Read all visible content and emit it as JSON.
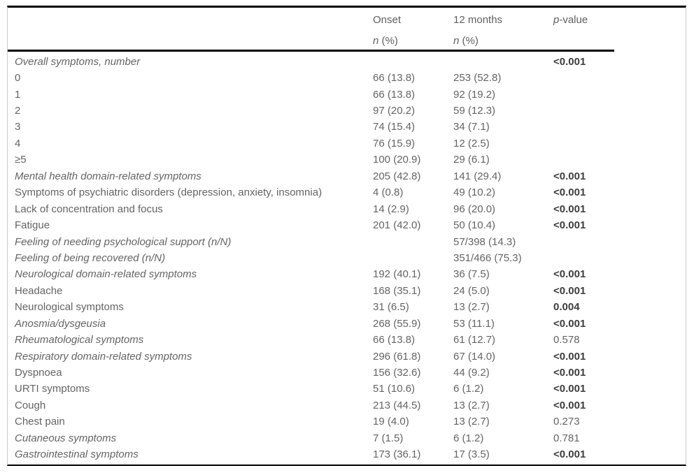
{
  "header": {
    "onset": {
      "title": "Onset",
      "sub_italic": "n",
      "sub_rest": " (%)"
    },
    "twelve_months": {
      "title": "12 months",
      "sub_italic": "n",
      "sub_rest": " (%)"
    },
    "p_column": {
      "italic": "p",
      "rest": "-value"
    }
  },
  "colors": {
    "text_regular": "#646464",
    "text_bold": "#3d3d3d",
    "rule_black": "#000000",
    "rule_light": "#cccccc",
    "background": "#ffffff"
  },
  "table": {
    "rows": [
      {
        "label": "Overall symptoms, number",
        "onset": "",
        "m12": "",
        "p": "<0.001",
        "italic": true,
        "p_bold": true
      },
      {
        "label": "0",
        "onset": "66 (13.8)",
        "m12": "253 (52.8)",
        "p": "",
        "italic": false,
        "p_bold": false
      },
      {
        "label": "1",
        "onset": "66 (13.8)",
        "m12": "92 (19.2)",
        "p": "",
        "italic": false,
        "p_bold": false
      },
      {
        "label": "2",
        "onset": "97 (20.2)",
        "m12": "59 (12.3)",
        "p": "",
        "italic": false,
        "p_bold": false
      },
      {
        "label": "3",
        "onset": "74 (15.4)",
        "m12": "34 (7.1)",
        "p": "",
        "italic": false,
        "p_bold": false
      },
      {
        "label": "4",
        "onset": "76 (15.9)",
        "m12": "12 (2.5)",
        "p": "",
        "italic": false,
        "p_bold": false
      },
      {
        "label": "≥5",
        "onset": "100 (20.9)",
        "m12": "29 (6.1)",
        "p": "",
        "italic": false,
        "p_bold": false
      },
      {
        "label": "Mental health domain-related symptoms",
        "onset": "205 (42.8)",
        "m12": "141 (29.4)",
        "p": "<0.001",
        "italic": true,
        "p_bold": true
      },
      {
        "label": "Symptoms of psychiatric disorders (depression, anxiety, insomnia)",
        "onset": "4 (0.8)",
        "m12": "49 (10.2)",
        "p": "<0.001",
        "italic": false,
        "p_bold": true
      },
      {
        "label": "Lack of concentration and focus",
        "onset": "14 (2.9)",
        "m12": "96 (20.0)",
        "p": "<0.001",
        "italic": false,
        "p_bold": true
      },
      {
        "label": "Fatigue",
        "onset": "201 (42.0)",
        "m12": "50 (10.4)",
        "p": "<0.001",
        "italic": false,
        "p_bold": true
      },
      {
        "label": "Feeling of needing psychological support (n/N)",
        "onset": "",
        "m12": "57/398 (14.3)",
        "p": "",
        "italic": true,
        "p_bold": false
      },
      {
        "label": "Feeling of being recovered (n/N)",
        "onset": "",
        "m12": "351/466 (75.3)",
        "p": "",
        "italic": true,
        "p_bold": false
      },
      {
        "label": "Neurological domain-related symptoms",
        "onset": "192 (40.1)",
        "m12": "36 (7.5)",
        "p": "<0.001",
        "italic": true,
        "p_bold": true
      },
      {
        "label": "Headache",
        "onset": "168 (35.1)",
        "m12": "24 (5.0)",
        "p": "<0.001",
        "italic": false,
        "p_bold": true
      },
      {
        "label": "Neurological symptoms",
        "onset": "31 (6.5)",
        "m12": "13 (2.7)",
        "p": "0.004",
        "italic": false,
        "p_bold": true
      },
      {
        "label": "Anosmia/dysgeusia",
        "onset": "268 (55.9)",
        "m12": "53 (11.1)",
        "p": "<0.001",
        "italic": true,
        "p_bold": true
      },
      {
        "label": "Rheumatological symptoms",
        "onset": "66 (13.8)",
        "m12": "61 (12.7)",
        "p": "0.578",
        "italic": true,
        "p_bold": false
      },
      {
        "label": "Respiratory domain-related symptoms",
        "onset": "296 (61.8)",
        "m12": "67 (14.0)",
        "p": "<0.001",
        "italic": true,
        "p_bold": true
      },
      {
        "label": "Dyspnoea",
        "onset": "156 (32.6)",
        "m12": "44 (9.2)",
        "p": "<0.001",
        "italic": false,
        "p_bold": true
      },
      {
        "label": "URTI symptoms",
        "onset": "51 (10.6)",
        "m12": "6 (1.2)",
        "p": "<0.001",
        "italic": false,
        "p_bold": true
      },
      {
        "label": "Cough",
        "onset": "213 (44.5)",
        "m12": "13 (2.7)",
        "p": "<0.001",
        "italic": false,
        "p_bold": true
      },
      {
        "label": "Chest pain",
        "onset": "19 (4.0)",
        "m12": "13 (2.7)",
        "p": "0.273",
        "italic": false,
        "p_bold": false
      },
      {
        "label": "Cutaneous symptoms",
        "onset": "7 (1.5)",
        "m12": "6 (1.2)",
        "p": "0.781",
        "italic": true,
        "p_bold": false
      },
      {
        "label": "Gastrointestinal symptoms",
        "onset": "173 (36.1)",
        "m12": "17 (3.5)",
        "p": "<0.001",
        "italic": true,
        "p_bold": true
      }
    ]
  }
}
